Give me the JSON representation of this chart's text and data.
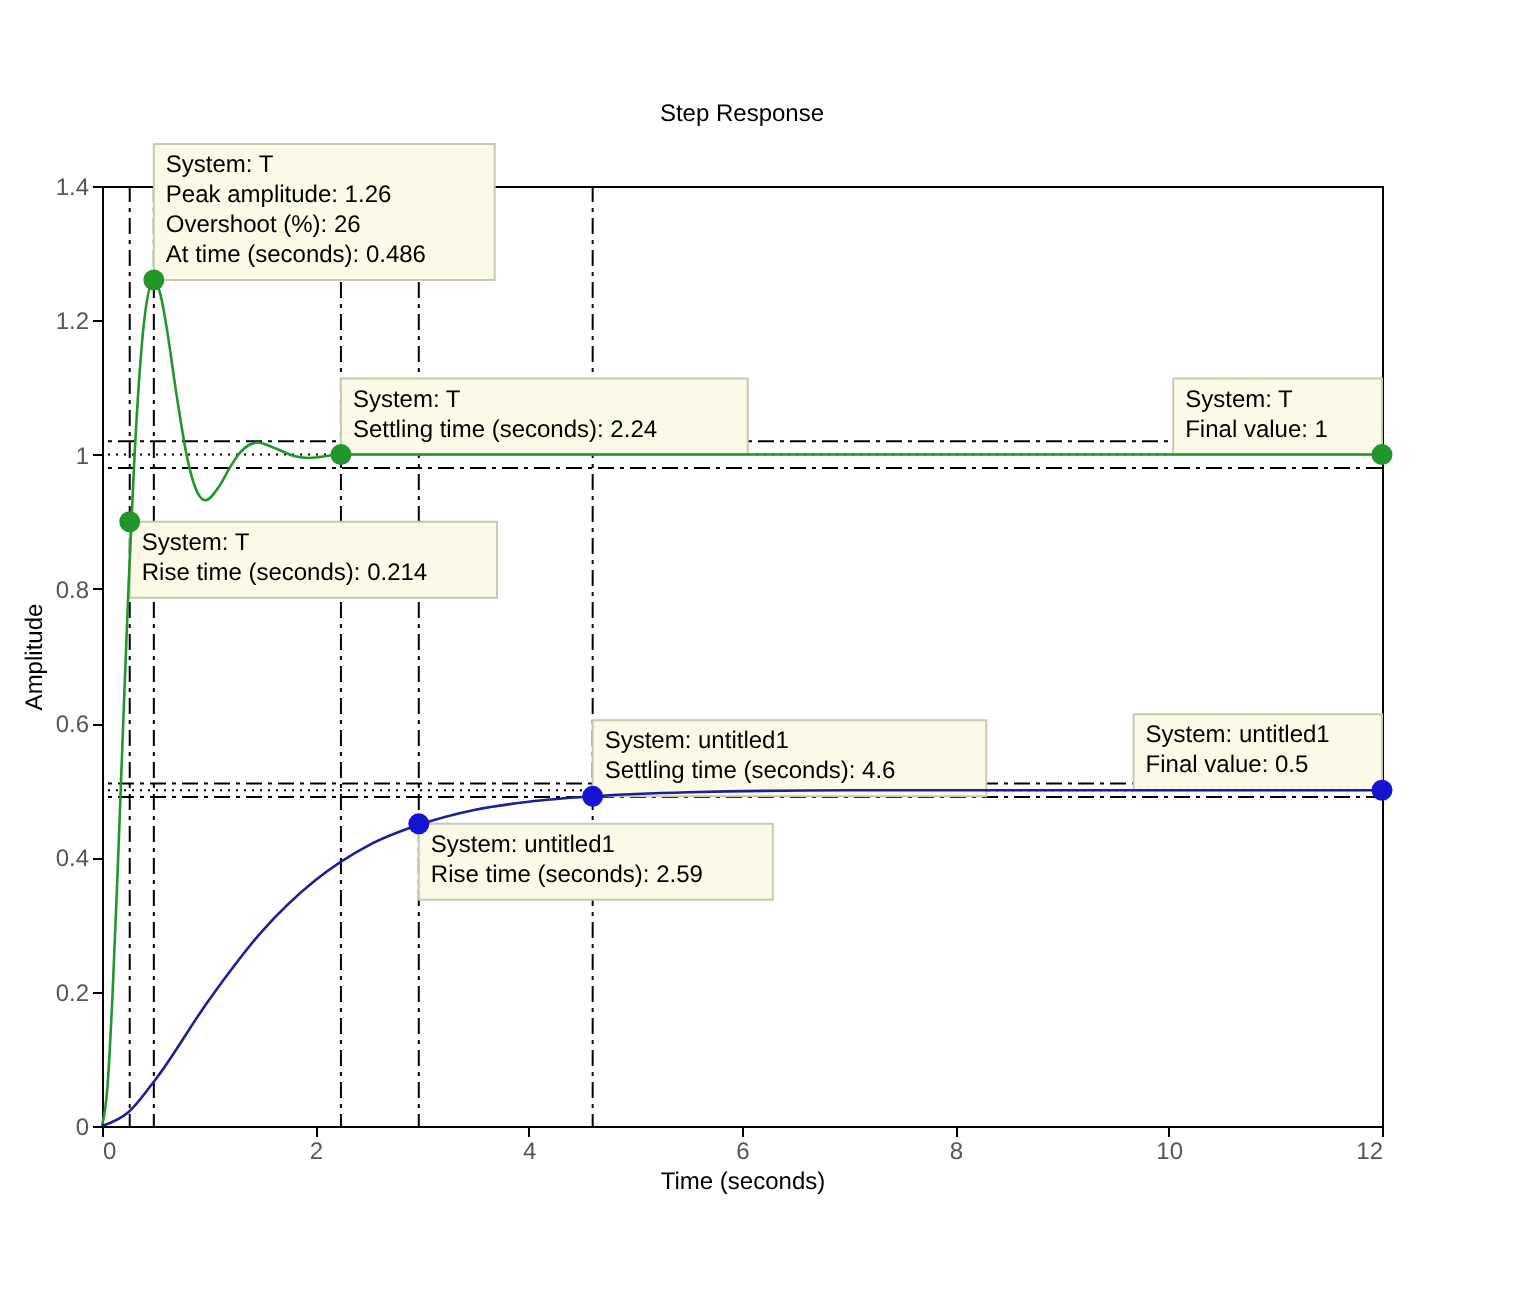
{
  "chart_data": {
    "type": "line",
    "title": "Step Response",
    "xlabel": "Time (seconds)",
    "ylabel": "Amplitude",
    "xlim": [
      0,
      12
    ],
    "ylim": [
      0,
      1.4
    ],
    "xticks": [
      0,
      2,
      4,
      6,
      8,
      10,
      12
    ],
    "yticks": [
      0,
      0.2,
      0.4,
      0.6,
      0.8,
      1,
      1.2,
      1.4
    ],
    "grid": false,
    "series": [
      {
        "color": "#22962a",
        "x": [
          0,
          0.05,
          0.1,
          0.15,
          0.2,
          0.25,
          0.3,
          0.35,
          0.4,
          0.486,
          0.55,
          0.6,
          0.7,
          0.8,
          0.9,
          0.97,
          1.1,
          1.2,
          1.3,
          1.46,
          1.6,
          1.8,
          1.94,
          2.24,
          2.5,
          3,
          4,
          6,
          8,
          10,
          12
        ],
        "values": [
          0,
          0.056,
          0.2,
          0.393,
          0.605,
          0.808,
          0.982,
          1.116,
          1.205,
          1.26,
          1.237,
          1.195,
          1.088,
          0.994,
          0.942,
          0.932,
          0.953,
          0.981,
          1.004,
          1.018,
          1.011,
          0.998,
          0.995,
          1.0,
          1.0,
          1.0,
          1.0,
          1.0,
          1.0,
          1.0,
          1.0
        ]
      },
      {
        "color": "#1e1e96",
        "x": [
          0,
          0.25,
          0.5,
          1,
          1.5,
          2,
          2.5,
          3,
          3.5,
          4,
          4.6,
          5.5,
          7,
          9,
          12
        ],
        "values": [
          0,
          0.021,
          0.069,
          0.187,
          0.29,
          0.366,
          0.418,
          0.45,
          0.471,
          0.483,
          0.491,
          0.497,
          0.5,
          0.5,
          0.5
        ]
      },
      {
        "type": "scatter",
        "color": "#22962a",
        "x": [
          0.26,
          0.486,
          2.24,
          12
        ],
        "values": [
          0.9,
          1.26,
          1.0,
          1.0
        ]
      },
      {
        "type": "scatter",
        "color": "#1414d2",
        "x": [
          2.97,
          4.6,
          12
        ],
        "values": [
          0.45,
          0.491,
          0.5
        ]
      }
    ],
    "ref_lines": [
      {
        "axis": "y",
        "value": 1.02,
        "line_style": "dashed",
        "color": "#000000"
      },
      {
        "axis": "y",
        "value": 0.98,
        "line_style": "dashed",
        "color": "#000000"
      },
      {
        "axis": "y",
        "value": 1.0,
        "line_style": "dotted",
        "color": "#000000"
      },
      {
        "axis": "y",
        "value": 0.51,
        "line_style": "dashed",
        "color": "#000000"
      },
      {
        "axis": "y",
        "value": 0.49,
        "line_style": "dashed",
        "color": "#000000"
      },
      {
        "axis": "y",
        "value": 0.5,
        "line_style": "dotted",
        "color": "#000000"
      },
      {
        "axis": "x",
        "value": 0.26,
        "line_style": "dashed",
        "color": "#000000"
      },
      {
        "axis": "x",
        "value": 0.486,
        "line_style": "dashed",
        "color": "#000000"
      },
      {
        "axis": "x",
        "value": 2.24,
        "line_style": "dashed",
        "color": "#000000"
      },
      {
        "axis": "x",
        "value": 2.97,
        "line_style": "dashed",
        "color": "#000000"
      },
      {
        "axis": "x",
        "value": 4.6,
        "line_style": "dashed",
        "color": "#000000"
      }
    ],
    "annotations": [
      {
        "text": "System: T\nPeak amplitude: 1.26\nOvershoot (%): 26\nAt time (seconds): 0.486",
        "x": 0.486,
        "y": 1.26
      },
      {
        "text": "System: T\nRise time (seconds): 0.214",
        "x": 0.26,
        "y": 0.9
      },
      {
        "text": "System: T\nSettling time (seconds): 2.24",
        "x": 2.24,
        "y": 1.0
      },
      {
        "text": "System: T\nFinal value: 1",
        "x": 12,
        "y": 1.0
      },
      {
        "text": "System: untitled1\nSettling time (seconds): 4.6",
        "x": 4.6,
        "y": 0.491
      },
      {
        "text": "System: untitled1\nFinal value: 0.5",
        "x": 12,
        "y": 0.5
      },
      {
        "text": "System: untitled1\nRise time (seconds): 2.59",
        "x": 2.97,
        "y": 0.45
      }
    ]
  }
}
